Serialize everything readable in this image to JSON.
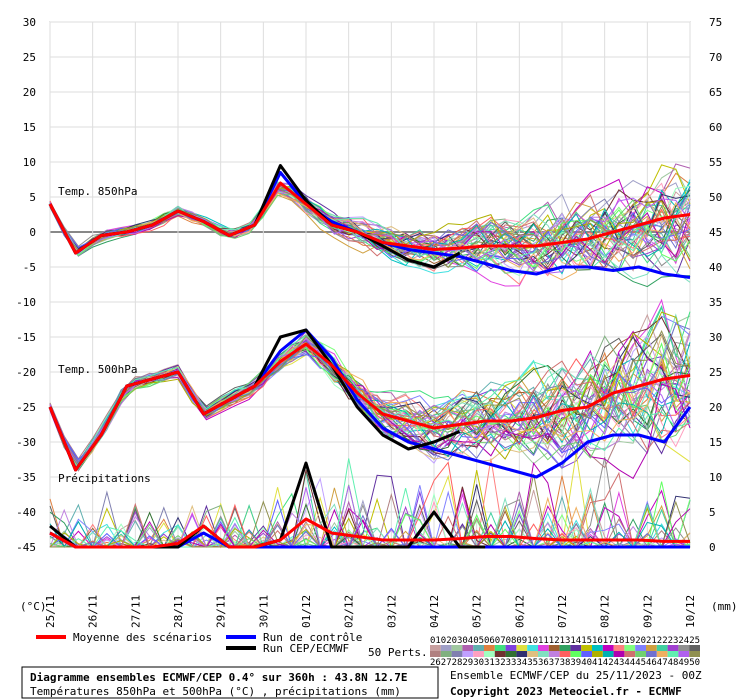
{
  "chart_data": {
    "type": "line",
    "left_axis": {
      "unit": "(°C)",
      "ticks": [
        30,
        25,
        20,
        15,
        10,
        5,
        0,
        -5,
        -10,
        -15,
        -20,
        -25,
        -30,
        -35,
        -40,
        -45
      ],
      "range": [
        -45,
        30
      ]
    },
    "right_axis": {
      "unit": "(mm)",
      "ticks": [
        75,
        70,
        65,
        60,
        55,
        50,
        45,
        40,
        35,
        30,
        25,
        20,
        15,
        10,
        5,
        0
      ],
      "range": [
        0,
        75
      ]
    },
    "x_ticks": [
      "25/11",
      "26/11",
      "27/11",
      "28/11",
      "29/11",
      "30/11",
      "01/12",
      "02/12",
      "03/12",
      "04/12",
      "05/12",
      "06/12",
      "07/12",
      "08/12",
      "09/12",
      "10/12"
    ],
    "annotations": [
      "Temp. 850hPa",
      "Temp. 500hPa",
      "Précipitations"
    ],
    "grid": true,
    "series": [
      {
        "name": "Moyenne des scénarios",
        "color": "#ff0000",
        "panel": "t850",
        "values": [
          4,
          -3,
          -0.5,
          0,
          1,
          3,
          1.5,
          -0.5,
          1,
          7,
          4,
          1,
          0,
          -1.5,
          -2,
          -2.5,
          -2.3,
          -2,
          -2,
          -2,
          -1.5,
          -1,
          0,
          1,
          2,
          2.5
        ]
      },
      {
        "name": "Run de contrôle",
        "color": "#0000ff",
        "panel": "t850",
        "values": [
          4,
          -3,
          -0.5,
          0,
          1,
          3,
          1.5,
          -0.5,
          1,
          8.5,
          4,
          1.5,
          0,
          -1.5,
          -2.5,
          -3,
          -3.5,
          -4.5,
          -5.5,
          -6,
          -5,
          -5,
          -5.5,
          -5,
          -6,
          -6.5
        ]
      },
      {
        "name": "Run CEP/ECMWF",
        "color": "#000000",
        "panel": "t850",
        "values": [
          4,
          -3,
          -0.5,
          0,
          1,
          3,
          1.5,
          -0.5,
          1,
          9.5,
          4.5,
          1,
          0,
          -2,
          -4,
          -5,
          -3
        ]
      },
      {
        "name": "Moyenne des scénarios",
        "color": "#ff0000",
        "panel": "t500",
        "values": [
          -25,
          -34,
          -29,
          -22,
          -21,
          -20,
          -26,
          -24,
          -22,
          -18.5,
          -16,
          -19,
          -23,
          -26,
          -27,
          -28,
          -27.5,
          -27,
          -27,
          -26.5,
          -25.5,
          -25,
          -23,
          -22,
          -21,
          -20.5
        ]
      },
      {
        "name": "Run de contrôle",
        "color": "#0000ff",
        "panel": "t500",
        "values": [
          -25,
          -34,
          -29,
          -22,
          -21,
          -20,
          -26,
          -24,
          -22,
          -17,
          -14,
          -18,
          -24,
          -28,
          -30,
          -31,
          -32,
          -33,
          -34,
          -35,
          -33,
          -30,
          -29,
          -29,
          -30,
          -25
        ]
      },
      {
        "name": "Run CEP/ECMWF",
        "color": "#000000",
        "panel": "t500",
        "values": [
          -25,
          -34,
          -29,
          -22,
          -21,
          -20,
          -26,
          -24,
          -22,
          -15,
          -14,
          -19,
          -25,
          -29,
          -31,
          -30,
          -28.5
        ]
      },
      {
        "name": "Moyenne des scénarios",
        "color": "#ff0000",
        "panel": "precip",
        "values": [
          2,
          0,
          0,
          0,
          0,
          0.5,
          3,
          0,
          0,
          1,
          4,
          2,
          1.5,
          1,
          1,
          1,
          1.2,
          1.5,
          1.5,
          1.2,
          1,
          1,
          1,
          1,
          0.8,
          0.8
        ]
      },
      {
        "name": "Run de contrôle",
        "color": "#0000ff",
        "panel": "precip",
        "values": [
          2,
          0,
          0,
          0,
          0,
          0,
          2,
          0,
          0,
          0,
          0,
          0,
          0,
          0,
          0,
          0,
          0,
          0,
          0,
          0,
          0,
          0,
          0,
          0,
          0,
          0
        ]
      },
      {
        "name": "Run CEP/ECMWF",
        "color": "#000000",
        "panel": "precip",
        "values": [
          3,
          0,
          0,
          0,
          0,
          0,
          3,
          0,
          0,
          1,
          12,
          0,
          0,
          0,
          0,
          5,
          0,
          0
        ]
      }
    ]
  },
  "legend": {
    "mean_label": "Moyenne des scénarios",
    "control_label": "Run de contrôle",
    "cep_label": "Run CEP/ECMWF",
    "perts_label": "50 Perts.",
    "pert_numbers_row1": [
      "01",
      "02",
      "03",
      "04",
      "05",
      "06",
      "07",
      "08",
      "09",
      "10",
      "11",
      "12",
      "13",
      "14",
      "15",
      "16",
      "17",
      "18",
      "19",
      "20",
      "21",
      "22",
      "23",
      "24",
      "25"
    ],
    "pert_numbers_row2": [
      "26",
      "27",
      "28",
      "29",
      "30",
      "31",
      "32",
      "33",
      "34",
      "35",
      "36",
      "37",
      "38",
      "39",
      "40",
      "41",
      "42",
      "43",
      "44",
      "45",
      "46",
      "47",
      "48",
      "49",
      "50"
    ],
    "pert_colors": [
      "#c8a0a0",
      "#a0a0c8",
      "#a0c8a0",
      "#b060b0",
      "#60b0b0",
      "#e08040",
      "#40e080",
      "#8040e0",
      "#e0e040",
      "#40e0e0",
      "#e040e0",
      "#a06030",
      "#30a060",
      "#6030a0",
      "#c0c000",
      "#00c0c0",
      "#c000c0",
      "#ff8080",
      "#80ff80",
      "#8080ff",
      "#d0a040",
      "#40d0a0",
      "#a040d0",
      "#909090",
      "#606060",
      "#b08080",
      "#80b080",
      "#8080b0",
      "#c0a0ff",
      "#ffa0c0",
      "#a0ffc0",
      "#703030",
      "#307030",
      "#303070",
      "#e0c080",
      "#80e0c0",
      "#c080e0",
      "#ff6060",
      "#60ff60",
      "#6060ff",
      "#b0b000",
      "#00b0b0",
      "#b000b0",
      "#d07070",
      "#70d070",
      "#7070d0",
      "#f0b060",
      "#60f0b0",
      "#b060f0",
      "#909050"
    ]
  },
  "info": {
    "title": "Diagramme ensembles ECMWF/CEP 0.4° sur 360h : 43.8N 12.7E",
    "subtitle": "Températures 850hPa et 500hPa (°C) , précipitations (mm)",
    "run": "Ensemble ECMWF/CEP du 25/11/2023 - 00Z",
    "copyright": "Copyright 2023 Meteociel.fr - ECMWF"
  }
}
